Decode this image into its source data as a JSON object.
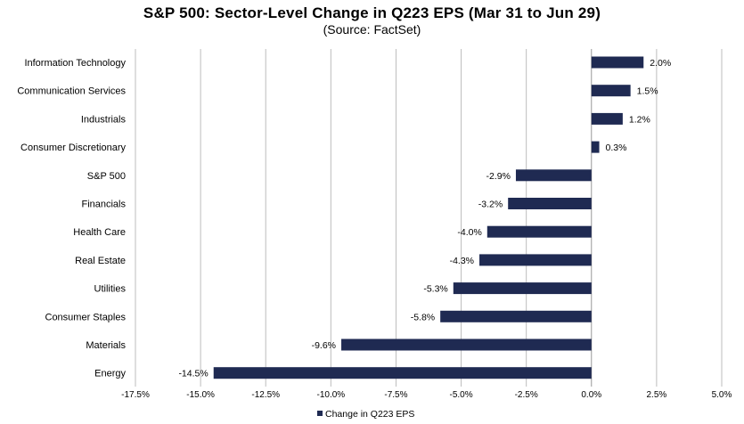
{
  "chart_data": {
    "type": "bar",
    "orientation": "horizontal",
    "title": "S&P 500: Sector-Level Change in Q223 EPS (Mar 31 to Jun 29)",
    "subtitle": "(Source: FactSet)",
    "categories": [
      "Information Technology",
      "Communication Services",
      "Industrials",
      "Consumer Discretionary",
      "S&P 500",
      "Financials",
      "Health Care",
      "Real Estate",
      "Utilities",
      "Consumer Staples",
      "Materials",
      "Energy"
    ],
    "series": [
      {
        "name": "Change in Q223 EPS",
        "values": [
          2.0,
          1.5,
          1.2,
          0.3,
          -2.9,
          -3.2,
          -4.0,
          -4.3,
          -5.3,
          -5.8,
          -9.6,
          -14.5
        ],
        "labels": [
          "2.0%",
          "1.5%",
          "1.2%",
          "0.3%",
          "-2.9%",
          "-3.2%",
          "-4.0%",
          "-4.3%",
          "-5.3%",
          "-5.8%",
          "-9.6%",
          "-14.5%"
        ],
        "color": "#1f2a52"
      }
    ],
    "xlim": [
      -17.5,
      5.0
    ],
    "xticks": [
      -17.5,
      -15.0,
      -12.5,
      -10.0,
      -7.5,
      -5.0,
      -2.5,
      0.0,
      2.5,
      5.0
    ],
    "xtick_labels": [
      "-17.5%",
      "-15.0%",
      "-12.5%",
      "-10.0%",
      "-7.5%",
      "-5.0%",
      "-2.5%",
      "0.0%",
      "2.5%",
      "5.0%"
    ],
    "grid": "vertical",
    "legend": "bottom-center"
  }
}
